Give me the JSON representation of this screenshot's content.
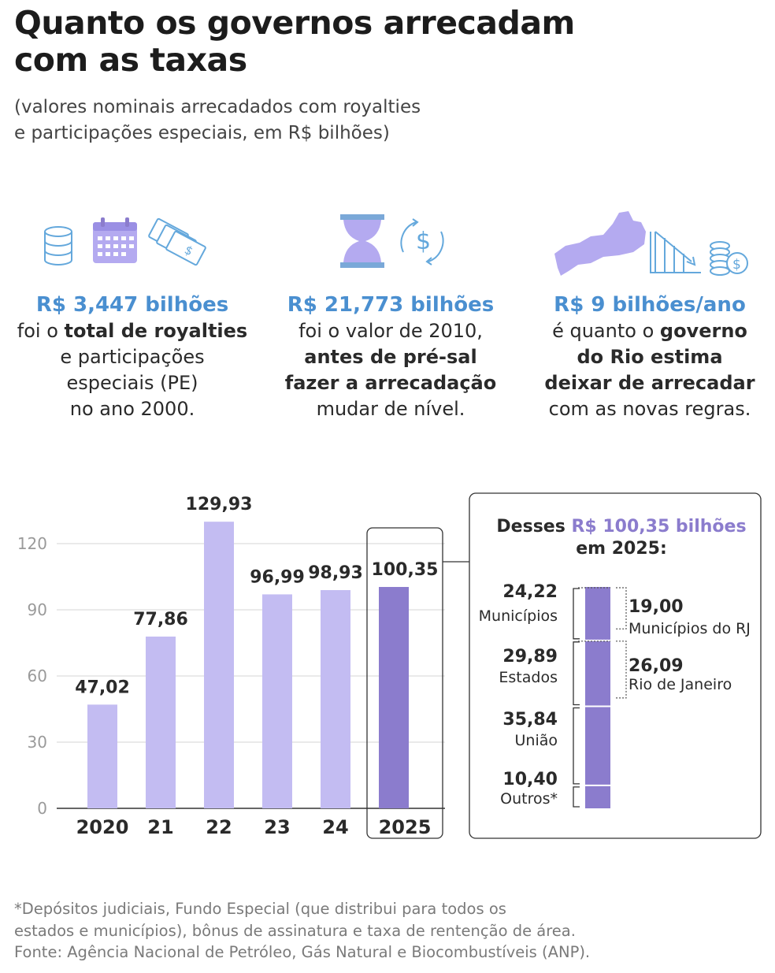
{
  "header": {
    "title_line1": "Quanto os governos arrecadam",
    "title_line2": "com as taxas",
    "subtitle_line1": "(valores nominais arrecadados com royalties",
    "subtitle_line2": "e participações especiais, em R$ bilhões)"
  },
  "stats": [
    {
      "big": "R$ 3,447 bilhões",
      "lines": [
        {
          "pre": "foi o ",
          "bold": "total de royalties",
          "post": ""
        },
        {
          "pre": "e participações",
          "bold": "",
          "post": ""
        },
        {
          "pre": "especiais (PE)",
          "bold": "",
          "post": ""
        },
        {
          "pre": "no ano 2000.",
          "bold": "",
          "post": ""
        }
      ]
    },
    {
      "big": "R$ 21,773 bilhões",
      "lines": [
        {
          "pre": "foi o valor de 2010,",
          "bold": "",
          "post": ""
        },
        {
          "pre": "",
          "bold": "antes de pré-sal",
          "post": ""
        },
        {
          "pre": "",
          "bold": "fazer a arrecadação",
          "post": ""
        },
        {
          "pre": "mudar de nível.",
          "bold": "",
          "post": ""
        }
      ]
    },
    {
      "big": "R$ 9 bilhões/ano",
      "lines": [
        {
          "pre": "é quanto o ",
          "bold": "governo",
          "post": ""
        },
        {
          "pre": "",
          "bold": "do Rio estima",
          "post": ""
        },
        {
          "pre": "",
          "bold": "deixar de arrecadar",
          "post": ""
        },
        {
          "pre": "com as novas regras.",
          "bold": "",
          "post": ""
        }
      ]
    }
  ],
  "colors": {
    "bar_light": "#c3bcf2",
    "bar_dark": "#8b7ccd",
    "highlight_text": "#8b7ccd",
    "stat_text": "#4a8fd0",
    "icon_blue": "#64a8dc",
    "icon_purple": "#b4aaf0"
  },
  "icons": {
    "stat1": [
      "barrel-icon",
      "calendar-icon",
      "money-bills-icon"
    ],
    "stat2": [
      "hourglass-icon",
      "currency-cycle-icon"
    ],
    "stat3": [
      "rio-map-icon",
      "declining-chart-icon",
      "coin-stack-icon"
    ]
  },
  "chart_data": [
    {
      "type": "bar",
      "categories": [
        "2020",
        "21",
        "22",
        "23",
        "24",
        "2025"
      ],
      "values": [
        47.02,
        77.86,
        129.93,
        96.99,
        98.93,
        100.35
      ],
      "value_labels": [
        "47,02",
        "77,86",
        "129,93",
        "96,99",
        "98,93",
        "100,35"
      ],
      "highlight_index": 5,
      "yticks": [
        0,
        30,
        60,
        90,
        120
      ],
      "ylim": [
        0,
        130
      ],
      "grid": true
    },
    {
      "type": "bar",
      "stacked": true,
      "title_prefix": "Desses ",
      "title_highlight": "R$ 100,35 bilhões",
      "title_line2": "em 2025:",
      "segments": [
        {
          "name": "Municípios",
          "value": 24.22,
          "label": "24,22"
        },
        {
          "name": "Estados",
          "value": 29.89,
          "label": "29,89"
        },
        {
          "name": "União",
          "value": 35.84,
          "label": "35,84"
        },
        {
          "name": "Outros*",
          "value": 10.4,
          "label": "10,40"
        }
      ],
      "sub_segments": [
        {
          "name": "Municípios do RJ",
          "value": 19.0,
          "label": "19,00",
          "parent": "Municípios"
        },
        {
          "name": "Rio de Janeiro",
          "value": 26.09,
          "label": "26,09",
          "parent": "Estados"
        }
      ]
    }
  ],
  "footnote": {
    "line1": "*Depósitos judiciais, Fundo Especial (que distribui para todos os",
    "line2": "estados e municípios), bônus de assinatura e taxa de rentenção de área.",
    "line3": "Fonte: Agência Nacional de Petróleo, Gás Natural e Biocombustíveis (ANP)."
  }
}
